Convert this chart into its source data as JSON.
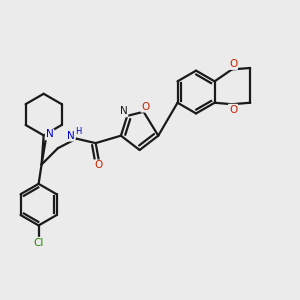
{
  "background_color": "#ebebeb",
  "bond_color": "#1a1a1a",
  "N_color": "#0000cc",
  "O_color": "#cc2200",
  "Cl_color": "#228800",
  "lw": 1.6,
  "figsize": [
    3.0,
    3.0
  ],
  "dpi": 100,
  "xlim": [
    0.0,
    1.0
  ],
  "ylim": [
    0.0,
    1.0
  ]
}
